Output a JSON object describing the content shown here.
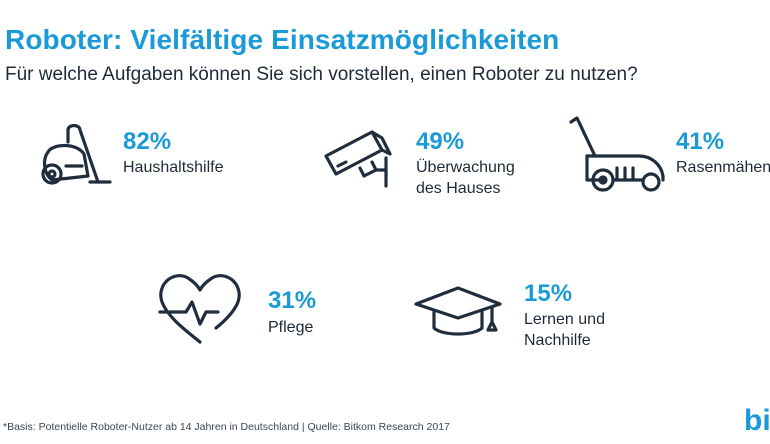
{
  "header": {
    "title": "Roboter: Vielfältige Einsatzmöglichkeiten",
    "subtitle": "Für welche Aufgaben können Sie sich vorstellen, einen Roboter zu nutzen?"
  },
  "chart_data": {
    "type": "table",
    "title": "Roboter: Vielfältige Einsatzmöglichkeiten",
    "subtitle": "Für welche Aufgaben können Sie sich vorstellen, einen Roboter zu nutzen?",
    "unit": "%",
    "items": [
      {
        "value": 82,
        "value_label": "82%",
        "label_lines": [
          "Haushaltshilfe"
        ],
        "icon": "vacuum-cleaner-icon"
      },
      {
        "value": 49,
        "value_label": "49%",
        "label_lines": [
          "Überwachung",
          "des Hauses"
        ],
        "icon": "security-camera-icon"
      },
      {
        "value": 41,
        "value_label": "41%",
        "label_lines": [
          "Rasenmähen"
        ],
        "icon": "lawn-mower-icon"
      },
      {
        "value": 31,
        "value_label": "31%",
        "label_lines": [
          "Pflege"
        ],
        "icon": "heart-pulse-icon"
      },
      {
        "value": 15,
        "value_label": "15%",
        "label_lines": [
          "Lernen und",
          "Nachhilfe"
        ],
        "icon": "graduation-cap-icon"
      }
    ]
  },
  "footer": {
    "note": "*Basis: Potentielle Roboter-Nutzer ab 14 Jahren  in Deutschland | Quelle: Bitkom Research 2017",
    "logo": "bit"
  },
  "colors": {
    "accent": "#1a9ad6",
    "text": "#1e2a38",
    "icon": "#1f2d3d"
  }
}
